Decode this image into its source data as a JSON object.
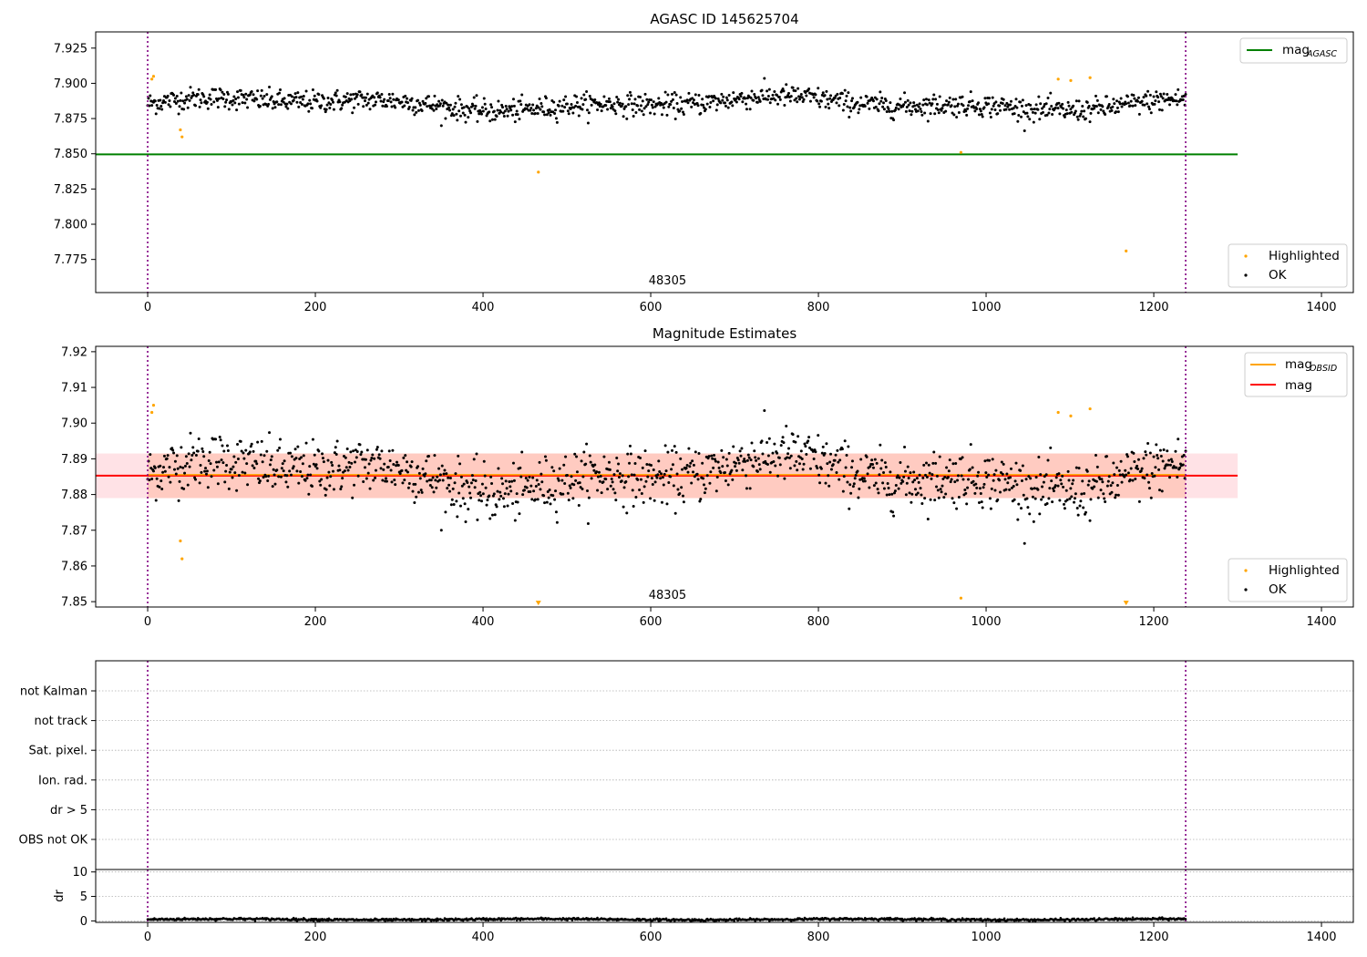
{
  "chart_data": [
    {
      "type": "scatter",
      "title": "AGASC ID 145625704",
      "xlim": [
        -62,
        1438
      ],
      "ylim": [
        7.7515,
        7.9365
      ],
      "xticks": [
        0,
        200,
        400,
        600,
        800,
        1000,
        1200,
        1400
      ],
      "yticks": [
        7.775,
        7.8,
        7.825,
        7.85,
        7.875,
        7.9,
        7.925
      ],
      "ytick_labels": [
        "7.775",
        "7.800",
        "7.825",
        "7.850",
        "7.875",
        "7.900",
        "7.925"
      ],
      "annotation": {
        "text": "48305",
        "x": 620
      },
      "obs_boundaries": [
        0,
        1238
      ],
      "reference_line": {
        "y": 7.8496,
        "x_range": [
          -62,
          1300
        ],
        "color": "#008000"
      },
      "legend_upper": [
        {
          "label": "mag",
          "sub": "AGASC",
          "color": "#008000"
        }
      ],
      "legend_lower": [
        {
          "label": "Highlighted",
          "color": "#ffa500"
        },
        {
          "label": "OK",
          "color": "#000000"
        }
      ],
      "series": [
        {
          "name": "OK",
          "kind": "ok",
          "n": 1238,
          "x_range": [
            0,
            1238
          ],
          "mean": 7.8855,
          "spread": 0.0046
        },
        {
          "name": "Highlighted",
          "kind": "highlighted",
          "points": [
            [
              5,
              7.903
            ],
            [
              7,
              7.905
            ],
            [
              39,
              7.867
            ],
            [
              41,
              7.862
            ],
            [
              466,
              7.837
            ],
            [
              970,
              7.851
            ],
            [
              1086,
              7.903
            ],
            [
              1101,
              7.902
            ],
            [
              1124,
              7.904
            ],
            [
              1167,
              7.781
            ]
          ]
        }
      ]
    },
    {
      "type": "scatter",
      "title": "Magnitude Estimates",
      "xlim": [
        -62,
        1438
      ],
      "ylim": [
        7.8485,
        7.9215
      ],
      "xticks": [
        0,
        200,
        400,
        600,
        800,
        1000,
        1200,
        1400
      ],
      "yticks": [
        7.85,
        7.86,
        7.87,
        7.88,
        7.89,
        7.9,
        7.91,
        7.92
      ],
      "ytick_labels": [
        "7.85",
        "7.86",
        "7.87",
        "7.88",
        "7.89",
        "7.90",
        "7.91",
        "7.92"
      ],
      "annotation": {
        "text": "48305",
        "x": 620
      },
      "obs_boundaries": [
        0,
        1238
      ],
      "reference_line": {
        "y": 7.8853,
        "x_range": [
          -62,
          1300
        ],
        "color": "#ff0000"
      },
      "bands": [
        {
          "y_range": [
            7.879,
            7.8915
          ],
          "x_range": [
            -62,
            1300
          ],
          "color": "#ffb6c1",
          "opacity": 0.4
        },
        {
          "y_range": [
            7.879,
            7.8915
          ],
          "x_range": [
            0,
            1238
          ],
          "color": "#ffa07a",
          "opacity": 0.35
        }
      ],
      "obsid_line": {
        "y": 7.8853,
        "x_range": [
          0,
          1238
        ],
        "color": "#ffa500"
      },
      "legend_upper": [
        {
          "label": "mag",
          "sub": "OBSID",
          "color": "#ffa500"
        },
        {
          "label": "mag",
          "sub": "",
          "color": "#ff0000"
        }
      ],
      "legend_lower": [
        {
          "label": "Highlighted",
          "color": "#ffa500"
        },
        {
          "label": "OK",
          "color": "#000000"
        }
      ],
      "series": [
        {
          "name": "OK",
          "kind": "ok",
          "n": 1238,
          "x_range": [
            0,
            1238
          ],
          "mean": 7.8855,
          "spread": 0.0046
        },
        {
          "name": "Highlighted",
          "kind": "highlighted",
          "points": [
            [
              5,
              7.903
            ],
            [
              7,
              7.905
            ],
            [
              39,
              7.867
            ],
            [
              41,
              7.862
            ],
            [
              970,
              7.851
            ],
            [
              1086,
              7.903
            ],
            [
              1101,
              7.902
            ],
            [
              1124,
              7.904
            ]
          ]
        },
        {
          "name": "Clipped",
          "kind": "clipped",
          "points": [
            [
              466,
              7.8495
            ],
            [
              1167,
              7.8495
            ]
          ]
        }
      ]
    },
    {
      "type": "scatter",
      "title": "",
      "xlim": [
        -62,
        1438
      ],
      "categories": [
        "OBS not OK",
        "dr > 5",
        "Ion. rad.",
        "Sat. pixel.",
        "not track",
        "not Kalman"
      ],
      "obs_boundaries": [
        0,
        1238
      ]
    },
    {
      "type": "line",
      "title": "",
      "xlim": [
        -62,
        1438
      ],
      "ylim": [
        -0.3,
        10.5
      ],
      "ylabel": "dr",
      "xticks": [
        0,
        200,
        400,
        600,
        800,
        1000,
        1200,
        1400
      ],
      "yticks": [
        0,
        5,
        10
      ],
      "ytick_labels": [
        "0",
        "5",
        "10"
      ],
      "obs_boundaries": [
        0,
        1238
      ],
      "series": [
        {
          "name": "dr",
          "kind": "dr",
          "n": 1238,
          "x_range": [
            0,
            1238
          ],
          "mean": 0.3,
          "spread": 0.15
        }
      ]
    }
  ]
}
